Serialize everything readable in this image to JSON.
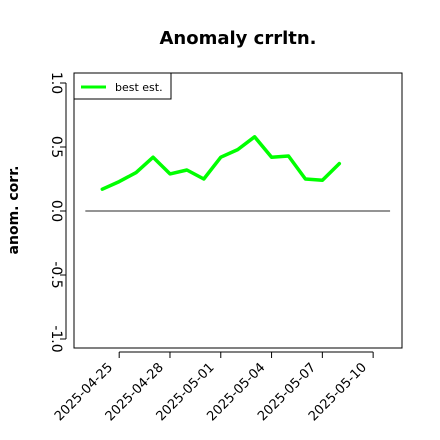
{
  "chart_data": {
    "type": "line",
    "title": "Anomaly crrltn.",
    "xlabel": "",
    "ylabel": "anom. corr.",
    "x": [
      "2025-04-24",
      "2025-04-25",
      "2025-04-26",
      "2025-04-27",
      "2025-04-28",
      "2025-04-29",
      "2025-04-30",
      "2025-05-01",
      "2025-05-02",
      "2025-05-03",
      "2025-05-04",
      "2025-05-05",
      "2025-05-06",
      "2025-05-07",
      "2025-05-08"
    ],
    "x_tick_labels": [
      "2025-04-25",
      "2025-04-28",
      "2025-05-01",
      "2025-05-04",
      "2025-05-07",
      "2025-05-10"
    ],
    "y_tick_labels": [
      "-1.0",
      "-0.5",
      "0.0",
      "0.5",
      "1.0"
    ],
    "xlim": [
      "2025-04-22",
      "2025-05-11"
    ],
    "ylim": [
      -1.05,
      1.05
    ],
    "reference_line": {
      "from": "2025-04-23",
      "to": "2025-05-11",
      "y": 0.0
    },
    "series": [
      {
        "name": "best est.",
        "color": "#00ff00",
        "values": [
          0.17,
          0.23,
          0.3,
          0.42,
          0.29,
          0.32,
          0.25,
          0.42,
          0.48,
          0.58,
          0.42,
          0.43,
          0.25,
          0.24,
          0.37
        ]
      }
    ],
    "legend": "top-left",
    "grid": false
  }
}
